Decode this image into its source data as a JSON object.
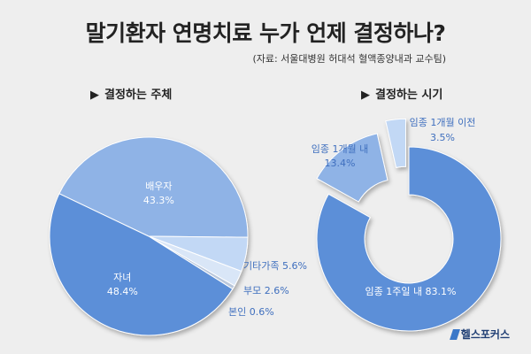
{
  "title": "말기환자 연명치료 누가 언제 결정하나?",
  "source": "(자료: 서울대병원 허대석 혈액종양내과 교수팀)",
  "sections": {
    "left": "결정하는 주체",
    "right": "결정하는 시기"
  },
  "triangle": "▶",
  "logo": "헬스포커스",
  "colors": {
    "pie_large": "#5b8fd8",
    "pie_second": "#8fb3e6",
    "pie_small": "#c2d8f5",
    "pie_tiny": "#d9e6f7",
    "label_blue": "#3f6fbe",
    "background": "#eeeeee"
  },
  "chart_data": [
    {
      "type": "pie",
      "title": "결정하는 주체",
      "slices": [
        {
          "name": "자녀",
          "value": 48.4,
          "label": "48.4%"
        },
        {
          "name": "배우자",
          "value": 43.3,
          "label": "43.3%"
        },
        {
          "name": "기타가족",
          "value": 5.6,
          "label": "5.6%"
        },
        {
          "name": "부모",
          "value": 2.6,
          "label": "2.6%"
        },
        {
          "name": "본인",
          "value": 0.6,
          "label": "0.6%"
        }
      ]
    },
    {
      "type": "pie",
      "style": "donut-exploded",
      "title": "결정하는 시기",
      "slices": [
        {
          "name": "임종 1주일 내",
          "value": 83.1,
          "label": "83.1%"
        },
        {
          "name": "임종 1개월 내",
          "value": 13.4,
          "label": "13.4%"
        },
        {
          "name": "임종 1개월 이전",
          "value": 3.5,
          "label": "3.5%"
        }
      ]
    }
  ]
}
